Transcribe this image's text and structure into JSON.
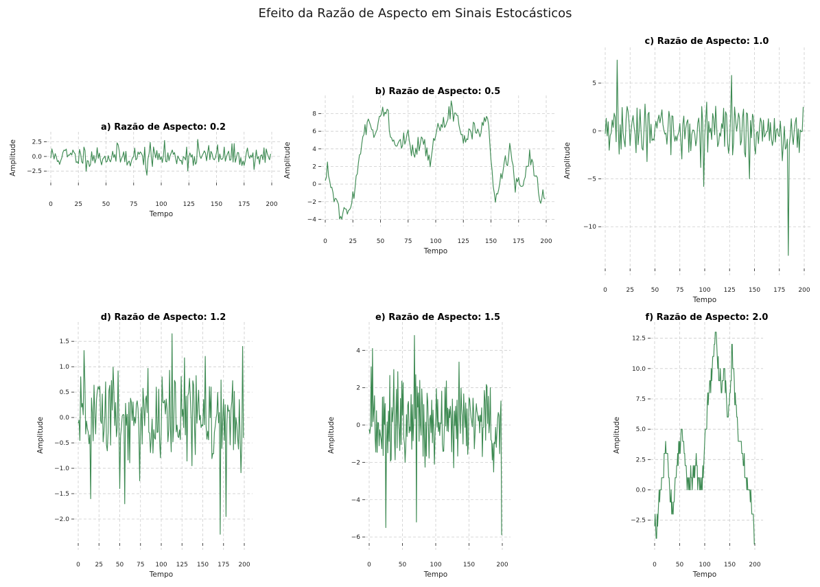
{
  "figure": {
    "title": "Efeito da Razão de Aspecto em Sinais Estocásticos"
  },
  "colors": {
    "line": "#3d8a52",
    "grid": "#cccccc"
  },
  "chart_data": [
    {
      "type": "line",
      "title": "a) Razão de Aspecto: 0.2",
      "xlabel": "Tempo",
      "ylabel": "Amplitude",
      "xlim": [
        -5,
        205
      ],
      "ylim": [
        -4,
        3.5
      ],
      "xticks": [
        0,
        25,
        50,
        75,
        100,
        125,
        150,
        175,
        200
      ],
      "yticks": [
        -2.5,
        0.0,
        2.5
      ],
      "ytick_labels": [
        "−2.5",
        "0.0",
        "2.5"
      ],
      "kind": "noise",
      "n": 200,
      "seed": 11,
      "scale": 1.0,
      "extrema": [
        [
          133,
          2.9
        ],
        [
          87,
          -3.2
        ]
      ]
    },
    {
      "type": "line",
      "title": "b) Razão de Aspecto: 0.5",
      "xlabel": "Tempo",
      "ylabel": "Amplitude",
      "xlim": [
        -5,
        210
      ],
      "ylim": [
        -4.2,
        9.6
      ],
      "xticks": [
        0,
        25,
        50,
        75,
        100,
        125,
        150,
        175,
        200
      ],
      "yticks": [
        -4,
        -2,
        0,
        2,
        4,
        6,
        8
      ],
      "ytick_labels": [
        "−4",
        "−2",
        "0",
        "2",
        "4",
        "6",
        "8"
      ],
      "kind": "anchors",
      "anchors": [
        [
          0,
          0.5
        ],
        [
          2,
          1.5
        ],
        [
          5,
          -0.5
        ],
        [
          10,
          -2
        ],
        [
          14,
          -3.5
        ],
        [
          18,
          -2.8
        ],
        [
          22,
          -3.3
        ],
        [
          26,
          -0.8
        ],
        [
          30,
          2
        ],
        [
          35,
          5.5
        ],
        [
          40,
          7
        ],
        [
          45,
          5.5
        ],
        [
          48,
          6.5
        ],
        [
          52,
          8.5
        ],
        [
          56,
          8
        ],
        [
          60,
          5
        ],
        [
          65,
          4.5
        ],
        [
          70,
          5
        ],
        [
          75,
          5.5
        ],
        [
          80,
          3
        ],
        [
          85,
          5
        ],
        [
          90,
          4.5
        ],
        [
          95,
          2.5
        ],
        [
          100,
          6
        ],
        [
          105,
          7
        ],
        [
          110,
          7.5
        ],
        [
          115,
          8.7
        ],
        [
          120,
          7.5
        ],
        [
          125,
          4
        ],
        [
          130,
          6
        ],
        [
          135,
          6.5
        ],
        [
          140,
          5.5
        ],
        [
          144,
          7.5
        ],
        [
          148,
          7
        ],
        [
          150,
          3
        ],
        [
          152,
          -0.5
        ],
        [
          155,
          -1.6
        ],
        [
          158,
          0
        ],
        [
          163,
          2.5
        ],
        [
          167,
          4.2
        ],
        [
          172,
          0
        ],
        [
          177,
          -0.5
        ],
        [
          182,
          1
        ],
        [
          185,
          3
        ],
        [
          188,
          2
        ],
        [
          192,
          0
        ],
        [
          195,
          -2.3
        ],
        [
          199,
          -1.2
        ]
      ],
      "scale": 0.45,
      "seed": 22
    },
    {
      "type": "line",
      "title": "c) Razão de Aspecto: 1.0",
      "xlabel": "Tempo",
      "ylabel": "Amplitude",
      "xlim": [
        -5,
        205
      ],
      "ylim": [
        -14.5,
        8.3
      ],
      "xticks": [
        0,
        25,
        50,
        75,
        100,
        125,
        150,
        175,
        200
      ],
      "yticks": [
        -10,
        -5,
        0,
        5
      ],
      "ytick_labels": [
        "−10",
        "−5",
        "0",
        "5"
      ],
      "kind": "noise",
      "n": 200,
      "seed": 33,
      "scale": 1.3,
      "extrema": [
        [
          12,
          7.4
        ],
        [
          127,
          5.8
        ],
        [
          184,
          -13
        ],
        [
          99,
          -5.8
        ],
        [
          145,
          -5
        ],
        [
          42,
          -3.2
        ]
      ]
    },
    {
      "type": "line",
      "title": "d) Razão de Aspecto: 1.2",
      "xlabel": "Tempo",
      "ylabel": "Amplitude",
      "xlim": [
        -5,
        205
      ],
      "ylim": [
        -2.5,
        1.8
      ],
      "xticks": [
        0,
        25,
        50,
        75,
        100,
        125,
        150,
        175,
        200
      ],
      "yticks": [
        -2.0,
        -1.5,
        -1.0,
        -0.5,
        0.0,
        0.5,
        1.0,
        1.5
      ],
      "ytick_labels": [
        "−2.0",
        "−1.5",
        "−1.0",
        "−0.5",
        "0.0",
        "0.5",
        "1.0",
        "1.5"
      ],
      "kind": "noise",
      "n": 200,
      "seed": 44,
      "scale": 0.55,
      "extrema": [
        [
          113,
          1.65
        ],
        [
          198,
          1.4
        ],
        [
          171,
          -2.3
        ],
        [
          178,
          -1.95
        ],
        [
          56,
          -1.7
        ],
        [
          15,
          -1.6
        ]
      ]
    },
    {
      "type": "line",
      "title": "e) Razão de Aspecto: 1.5",
      "xlabel": "Tempo",
      "ylabel": "Amplitude",
      "xlim": [
        -5,
        205
      ],
      "ylim": [
        -6.4,
        5.3
      ],
      "xticks": [
        0,
        50,
        100,
        150,
        200
      ],
      "yticks": [
        -6,
        -4,
        -2,
        0,
        2,
        4
      ],
      "ytick_labels": [
        "−6",
        "−4",
        "−2",
        "0",
        "2",
        "4"
      ],
      "kind": "noise",
      "n": 200,
      "seed": 55,
      "scale": 1.3,
      "extrema": [
        [
          5,
          4.1
        ],
        [
          68,
          4.8
        ],
        [
          199,
          -5.9
        ],
        [
          25,
          -5.5
        ],
        [
          71,
          -5.2
        ]
      ]
    },
    {
      "type": "line",
      "title": "f) Razão de Aspecto: 2.0",
      "xlabel": "Tempo",
      "ylabel": "Amplitude",
      "xlim": [
        -5,
        205
      ],
      "ylim": [
        -4.5,
        13.5
      ],
      "xticks": [
        0,
        50,
        100,
        150,
        200
      ],
      "yticks": [
        -2.5,
        0.0,
        2.5,
        5.0,
        7.5,
        10.0,
        12.5
      ],
      "ytick_labels": [
        "−2.5",
        "0.0",
        "2.5",
        "5.0",
        "7.5",
        "10.0",
        "12.5"
      ],
      "kind": "anchors",
      "anchors": [
        [
          0,
          -3
        ],
        [
          3,
          -4
        ],
        [
          8,
          -1
        ],
        [
          15,
          1
        ],
        [
          22,
          4
        ],
        [
          28,
          1
        ],
        [
          32,
          -1
        ],
        [
          36,
          -2
        ],
        [
          42,
          1
        ],
        [
          48,
          3
        ],
        [
          55,
          5
        ],
        [
          62,
          2
        ],
        [
          68,
          0
        ],
        [
          75,
          1
        ],
        [
          82,
          2
        ],
        [
          88,
          1
        ],
        [
          95,
          0
        ],
        [
          102,
          5
        ],
        [
          108,
          8
        ],
        [
          115,
          10
        ],
        [
          122,
          13
        ],
        [
          128,
          10
        ],
        [
          133,
          8
        ],
        [
          140,
          9
        ],
        [
          148,
          6
        ],
        [
          155,
          12
        ],
        [
          160,
          8
        ],
        [
          165,
          5
        ],
        [
          172,
          4
        ],
        [
          178,
          2
        ],
        [
          185,
          1
        ],
        [
          192,
          -1
        ],
        [
          199,
          -4
        ]
      ],
      "scale": 0.5,
      "seed": 66,
      "step": 1
    }
  ]
}
